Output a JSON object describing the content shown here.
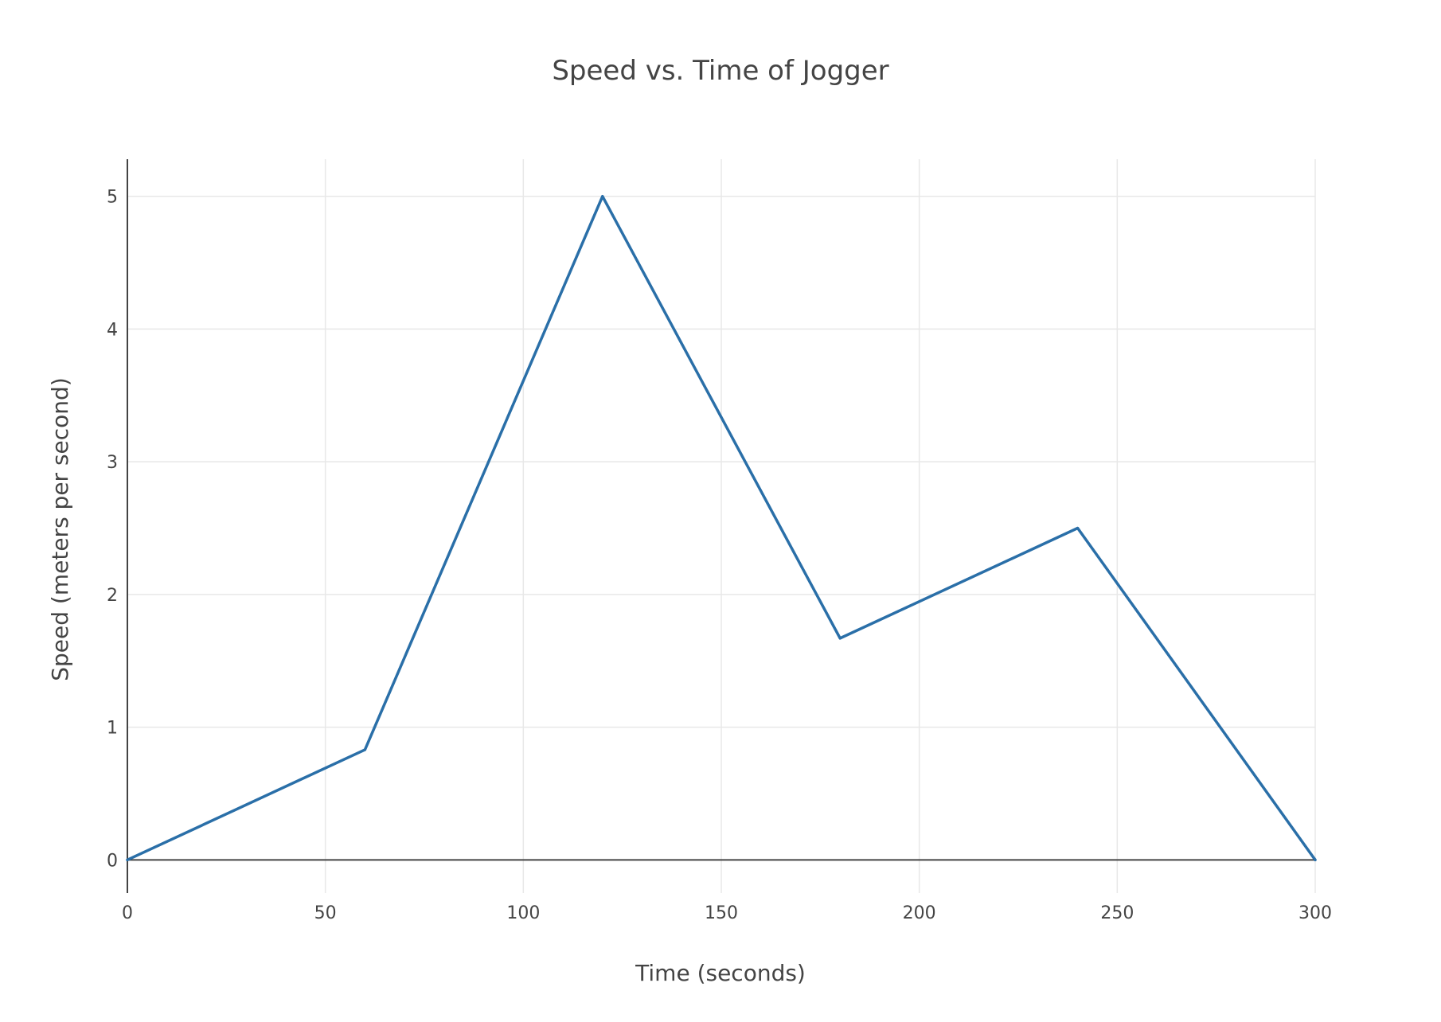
{
  "chart_data": {
    "type": "line",
    "title": "Speed vs. Time of Jogger",
    "xlabel": "Time (seconds)",
    "ylabel": "Speed (meters per second)",
    "xlim": [
      0,
      300
    ],
    "ylim": [
      -0.25,
      5.28
    ],
    "x_ticks": [
      0,
      50,
      100,
      150,
      200,
      250,
      300
    ],
    "y_ticks": [
      0,
      1,
      2,
      3,
      4,
      5
    ],
    "grid": true,
    "legend": "none",
    "series": [
      {
        "color": "#2a6fa8",
        "x": [
          0,
          60,
          120,
          180,
          240,
          300
        ],
        "y": [
          0,
          0.83,
          5,
          1.67,
          2.5,
          0
        ]
      }
    ]
  }
}
